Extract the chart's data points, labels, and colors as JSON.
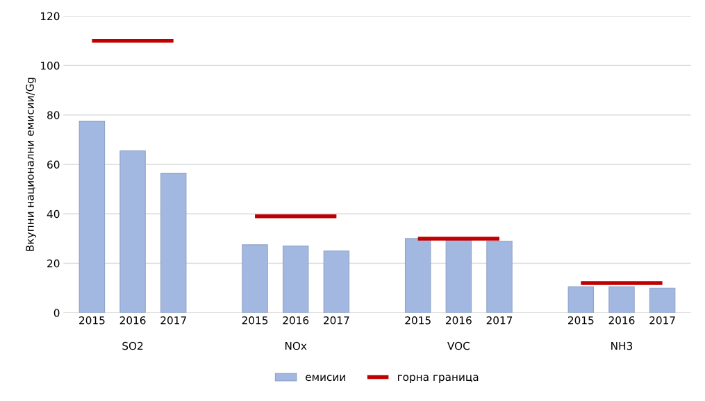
{
  "chart_data": {
    "type": "bar",
    "ylabel": "Вкупни национални емисии/Gg",
    "categories": [
      "2015",
      "2016",
      "2017",
      null,
      "2015",
      "2016",
      "2017",
      null,
      "2015",
      "2016",
      "2017",
      null,
      "2015",
      "2016",
      "2017"
    ],
    "series": [
      {
        "name": "емисии",
        "color": "#a3b8e0",
        "values": [
          77.5,
          65.5,
          56.5,
          null,
          27.5,
          27,
          25,
          null,
          30,
          29.5,
          29,
          null,
          10.5,
          10.5,
          10
        ]
      },
      {
        "name": "горна граница",
        "type": "line",
        "color": "#c00000",
        "values": [
          110,
          110,
          110,
          null,
          39,
          39,
          39,
          null,
          30,
          30,
          30,
          null,
          12,
          12,
          12
        ]
      }
    ],
    "annotations": [
      "SO2",
      "NOx",
      "VOC",
      "NH3"
    ],
    "ylim": [
      0,
      120
    ],
    "yticks": [
      0,
      20,
      40,
      60,
      80,
      100,
      120
    ],
    "grid": "y",
    "legend": "bottom"
  }
}
